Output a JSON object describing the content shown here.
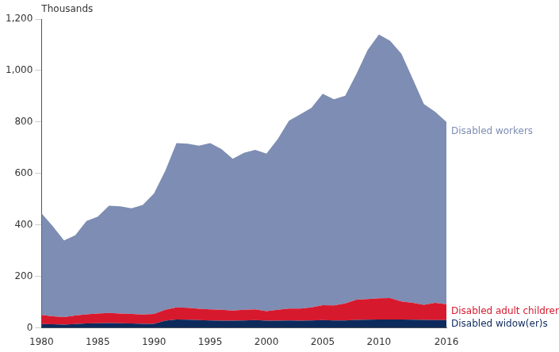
{
  "chart_data": {
    "type": "area",
    "y_label": "Thousands",
    "stacked": true,
    "grid": false,
    "x": [
      1980,
      1981,
      1982,
      1983,
      1984,
      1985,
      1986,
      1987,
      1988,
      1989,
      1990,
      1991,
      1992,
      1993,
      1994,
      1995,
      1996,
      1997,
      1998,
      1999,
      2000,
      2001,
      2002,
      2003,
      2004,
      2005,
      2006,
      2007,
      2008,
      2009,
      2010,
      2011,
      2012,
      2013,
      2014,
      2015,
      2016
    ],
    "xlim": [
      1980,
      2016
    ],
    "xticks": [
      1980,
      1985,
      1990,
      1995,
      2000,
      2005,
      2010,
      2016
    ],
    "ylim": [
      0,
      1200
    ],
    "yticks": [
      0,
      200,
      400,
      600,
      800,
      {
        "value": 1000,
        "label": "1,000"
      },
      {
        "value": 1200,
        "label": "1,200"
      }
    ],
    "series": [
      {
        "name": "Disabled widow(er)s",
        "color": "#0d2a5c",
        "values": [
          15,
          14,
          13,
          15,
          17,
          18,
          19,
          18,
          17,
          16,
          16,
          28,
          33,
          32,
          30,
          29,
          28,
          28,
          29,
          30,
          28,
          28,
          29,
          28,
          29,
          30,
          29,
          29,
          31,
          32,
          33,
          33,
          33,
          32,
          31,
          30,
          30
        ]
      },
      {
        "name": "Disabled adult children",
        "color": "#d7192e",
        "values": [
          35,
          31,
          29,
          33,
          36,
          38,
          39,
          38,
          37,
          36,
          38,
          42,
          47,
          46,
          44,
          43,
          42,
          39,
          41,
          42,
          37,
          42,
          46,
          47,
          51,
          58,
          58,
          66,
          79,
          80,
          82,
          83,
          70,
          65,
          59,
          67,
          62
        ]
      },
      {
        "name": "Disabled workers",
        "color": "#7e8db3",
        "values": [
          395,
          350,
          298,
          312,
          362,
          376,
          417,
          416,
          411,
          426,
          468,
          540,
          638,
          638,
          634,
          646,
          625,
          590,
          610,
          620,
          612,
          663,
          730,
          755,
          775,
          822,
          801,
          807,
          877,
          968,
          1025,
          999,
          962,
          871,
          780,
          743,
          708
        ]
      }
    ]
  }
}
